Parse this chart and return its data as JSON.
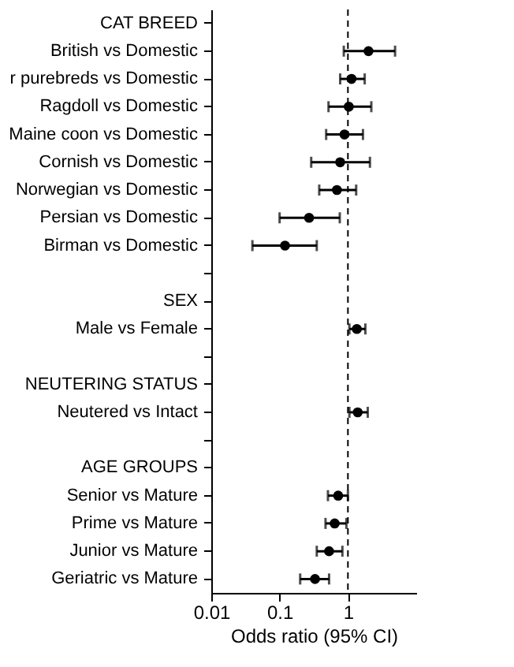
{
  "chart_data": {
    "type": "scatter",
    "orientation": "horizontal",
    "log": "x",
    "categories": [
      "CAT BREED",
      "British vs Domestic",
      "r purebreds vs Domestic",
      "Ragdoll vs Domestic",
      "Maine coon vs Domestic",
      "Cornish vs Domestic",
      "Norwegian vs Domestic",
      "Persian vs Domestic",
      "Birman vs Domestic",
      null,
      "SEX",
      "Male vs Female",
      null,
      "NEUTERING STATUS",
      "Neutered vs Intact",
      null,
      "AGE GROUPS",
      "Senior vs Mature",
      "Prime vs Mature",
      "Junior vs Mature",
      "Geriatric vs Mature"
    ],
    "series": [
      {
        "color": "#000000",
        "values": [
          null,
          2.0,
          1.13,
          1.03,
          0.89,
          0.77,
          0.69,
          0.27,
          0.12,
          null,
          null,
          1.35,
          null,
          null,
          1.39,
          null,
          null,
          0.72,
          0.64,
          0.53,
          0.33
        ],
        "errors": [
          null,
          [
            0.87,
            4.9
          ],
          [
            0.77,
            1.76
          ],
          [
            0.52,
            2.2
          ],
          [
            0.48,
            1.66
          ],
          [
            0.29,
            2.1
          ],
          [
            0.38,
            1.32
          ],
          [
            0.1,
            0.76
          ],
          [
            0.04,
            0.35
          ],
          null,
          null,
          [
            1.05,
            1.8
          ],
          null,
          null,
          [
            1.05,
            1.95
          ],
          null,
          null,
          [
            0.51,
            1.0
          ],
          [
            0.47,
            0.95
          ],
          [
            0.35,
            0.83
          ],
          [
            0.2,
            0.53
          ]
        ]
      }
    ],
    "xlabel": "Odds ratio (95% CI)",
    "xlim": [
      0.01,
      10
    ],
    "xticks": [
      0.01,
      0.1,
      1
    ],
    "ref_lines": [
      {
        "axis": "x",
        "value": 1,
        "line_style": "dashed",
        "color": "#000000"
      }
    ],
    "marker": "circle",
    "grid": false
  }
}
